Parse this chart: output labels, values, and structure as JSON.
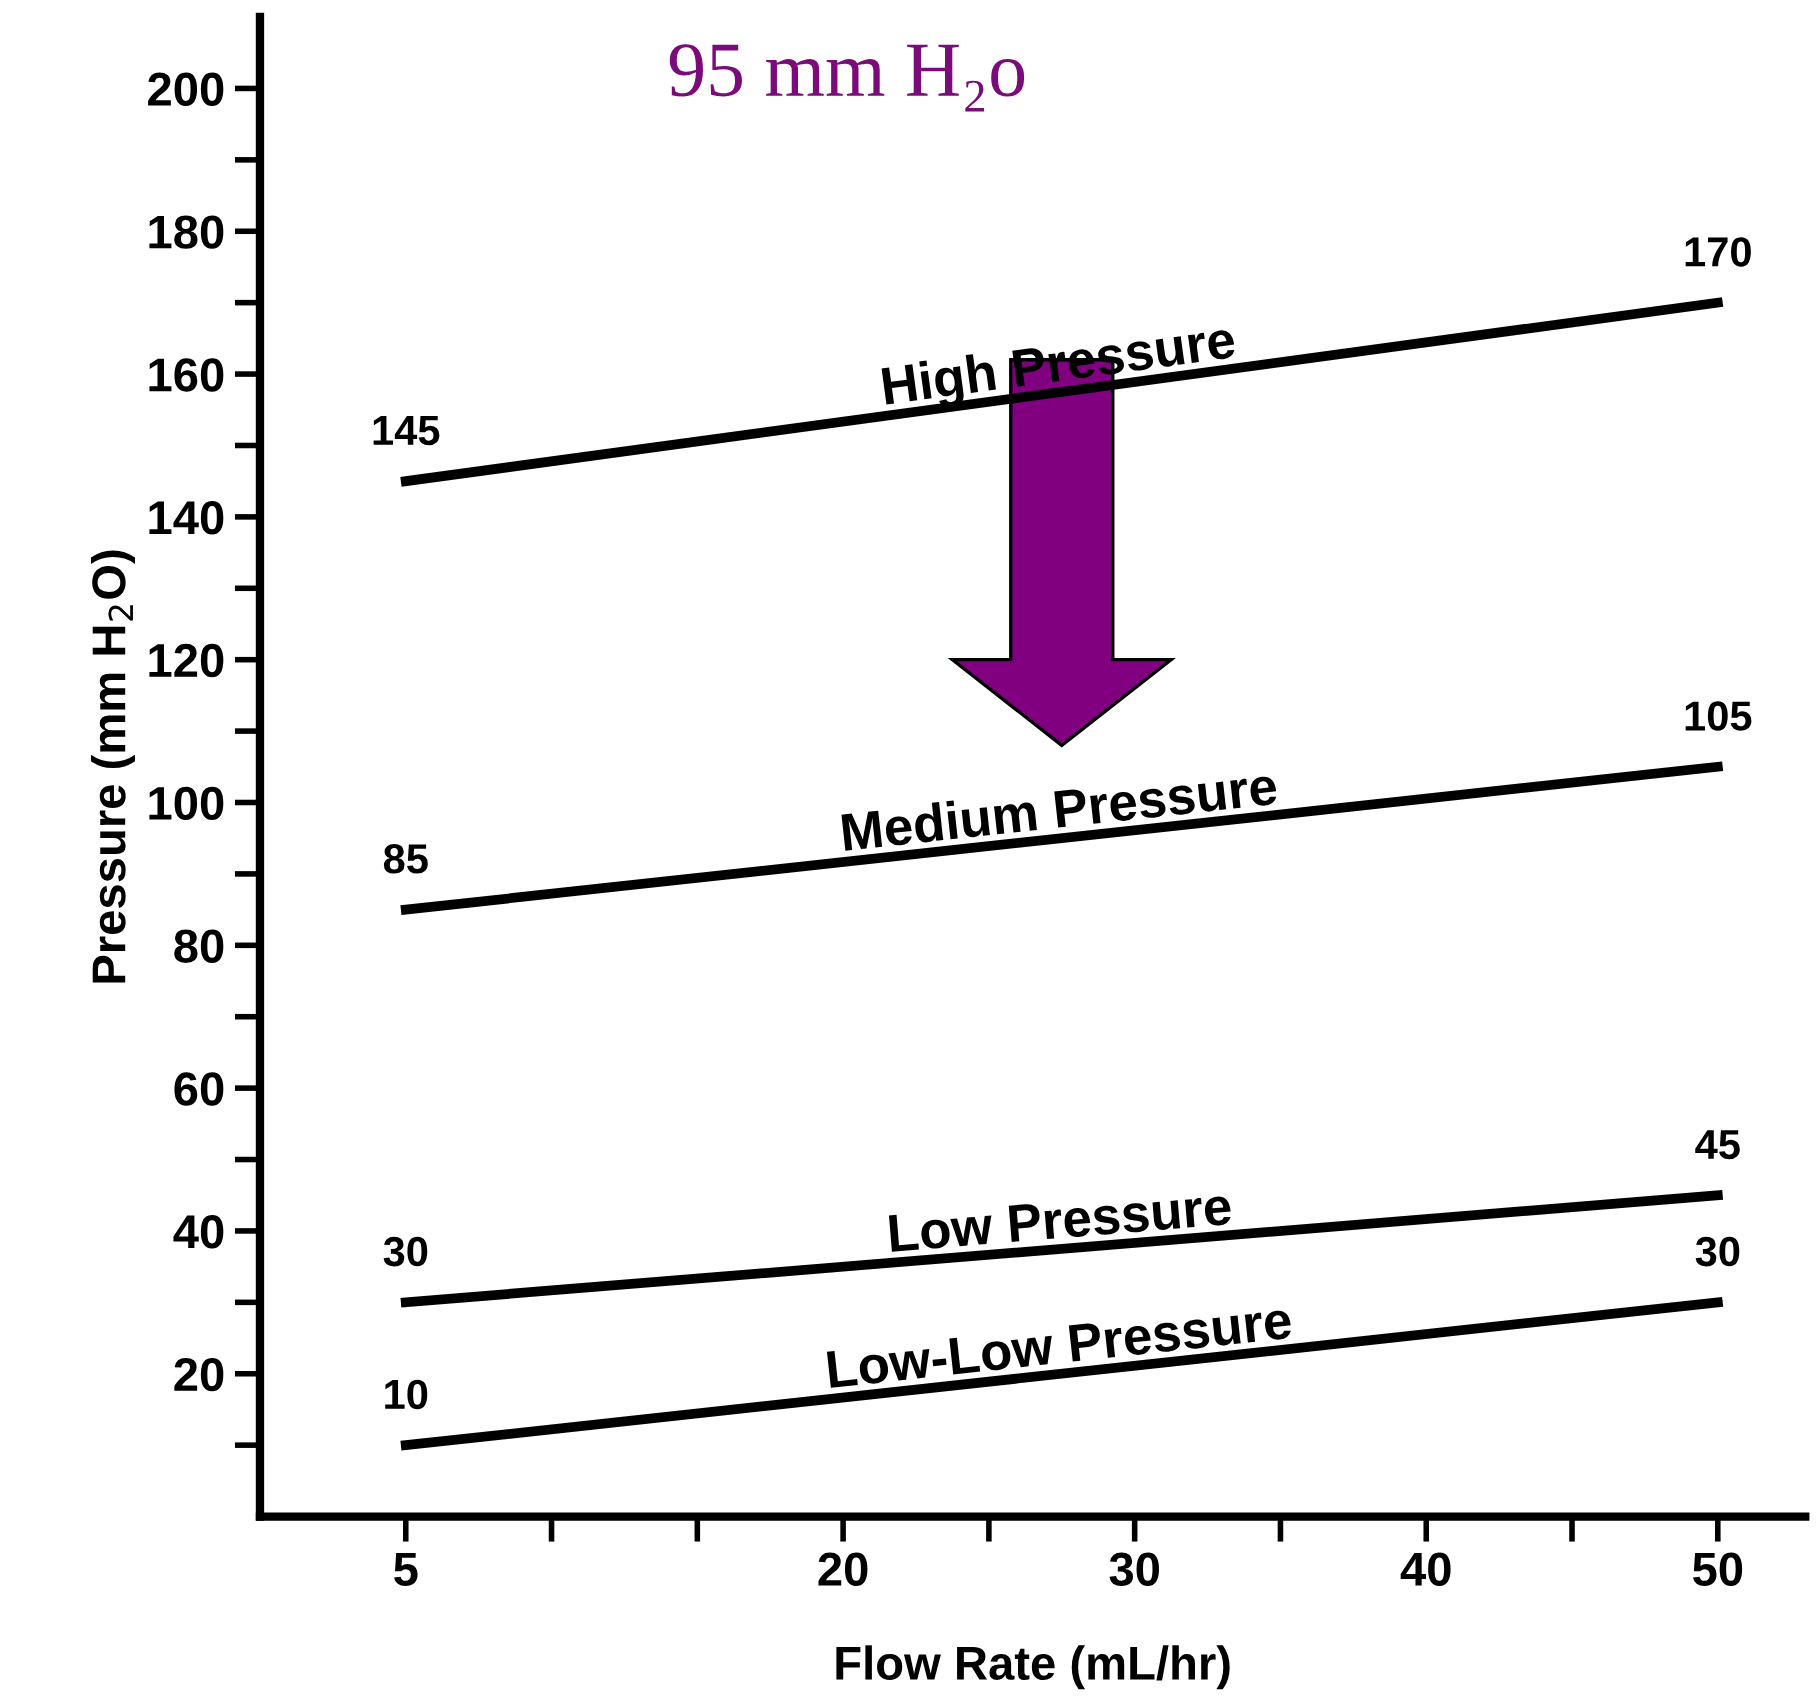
{
  "chart_data": {
    "type": "line",
    "title": "95 mm H₂o",
    "xlabel": "Flow Rate (mL/hr)",
    "ylabel": "Pressure (mm H$_{2}$O)",
    "x": [
      5,
      50
    ],
    "series": [
      {
        "name": "High Pressure",
        "color": "#000000",
        "values": [
          145,
          170
        ],
        "value_labels": [
          "145",
          "170"
        ]
      },
      {
        "name": "Medium Pressure",
        "color": "#000000",
        "values": [
          85,
          105
        ],
        "value_labels": [
          "85",
          "105"
        ]
      },
      {
        "name": "Low Pressure",
        "color": "#000000",
        "values": [
          30,
          45
        ],
        "value_labels": [
          "30",
          "45"
        ]
      },
      {
        "name": "Low-Low Pressure",
        "color": "#000000",
        "values": [
          10,
          30
        ],
        "value_labels": [
          "10",
          "30"
        ]
      }
    ],
    "xlim": [
      0,
      53
    ],
    "ylim": [
      0,
      210
    ],
    "xticks": [
      5,
      {
        "value": 10,
        "label": null
      },
      {
        "value": 15,
        "label": null
      },
      20,
      {
        "value": 25,
        "label": null
      },
      30,
      {
        "value": 35,
        "label": null
      },
      40,
      {
        "value": 45,
        "label": null
      },
      50
    ],
    "yticks": [
      {
        "value": 10,
        "label": null
      },
      20,
      {
        "value": 30,
        "label": null
      },
      40,
      {
        "value": 50,
        "label": null
      },
      60,
      {
        "value": 70,
        "label": null
      },
      80,
      {
        "value": 90,
        "label": null
      },
      100,
      {
        "value": 110,
        "label": null
      },
      120,
      {
        "value": 130,
        "label": null
      },
      140,
      {
        "value": 150,
        "label": null
      },
      160,
      {
        "value": 170,
        "label": null
      },
      180,
      {
        "value": 190,
        "label": null
      },
      200
    ],
    "grid": false,
    "legend": false,
    "marker": "none",
    "line_style": "solid"
  }
}
